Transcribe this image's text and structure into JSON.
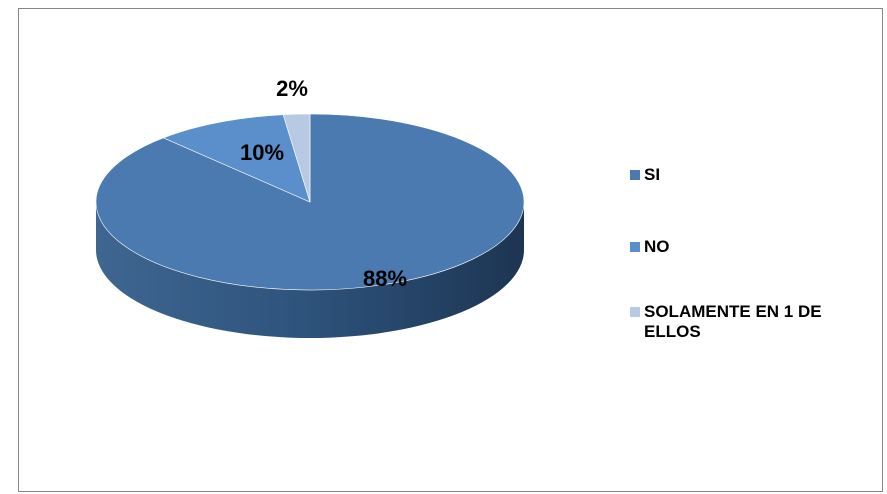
{
  "chart_data": {
    "type": "pie",
    "title": "",
    "categories": [
      "SI",
      "NO",
      "SOLAMENTE EN 1 DE ELLOS"
    ],
    "values": [
      88,
      10,
      2
    ],
    "data_labels": [
      "88%",
      "10%",
      "2%"
    ],
    "colors": [
      "#4A7AB0",
      "#5B8FCB",
      "#B8C9E4"
    ],
    "style": "3d",
    "legend_position": "right"
  },
  "legend": {
    "items": [
      {
        "label": "SI",
        "color": "#4A7AB0"
      },
      {
        "label": "NO",
        "color": "#5B8FCB"
      },
      {
        "label": "SOLAMENTE EN 1 DE ELLOS",
        "color": "#B8C9E4"
      }
    ]
  }
}
